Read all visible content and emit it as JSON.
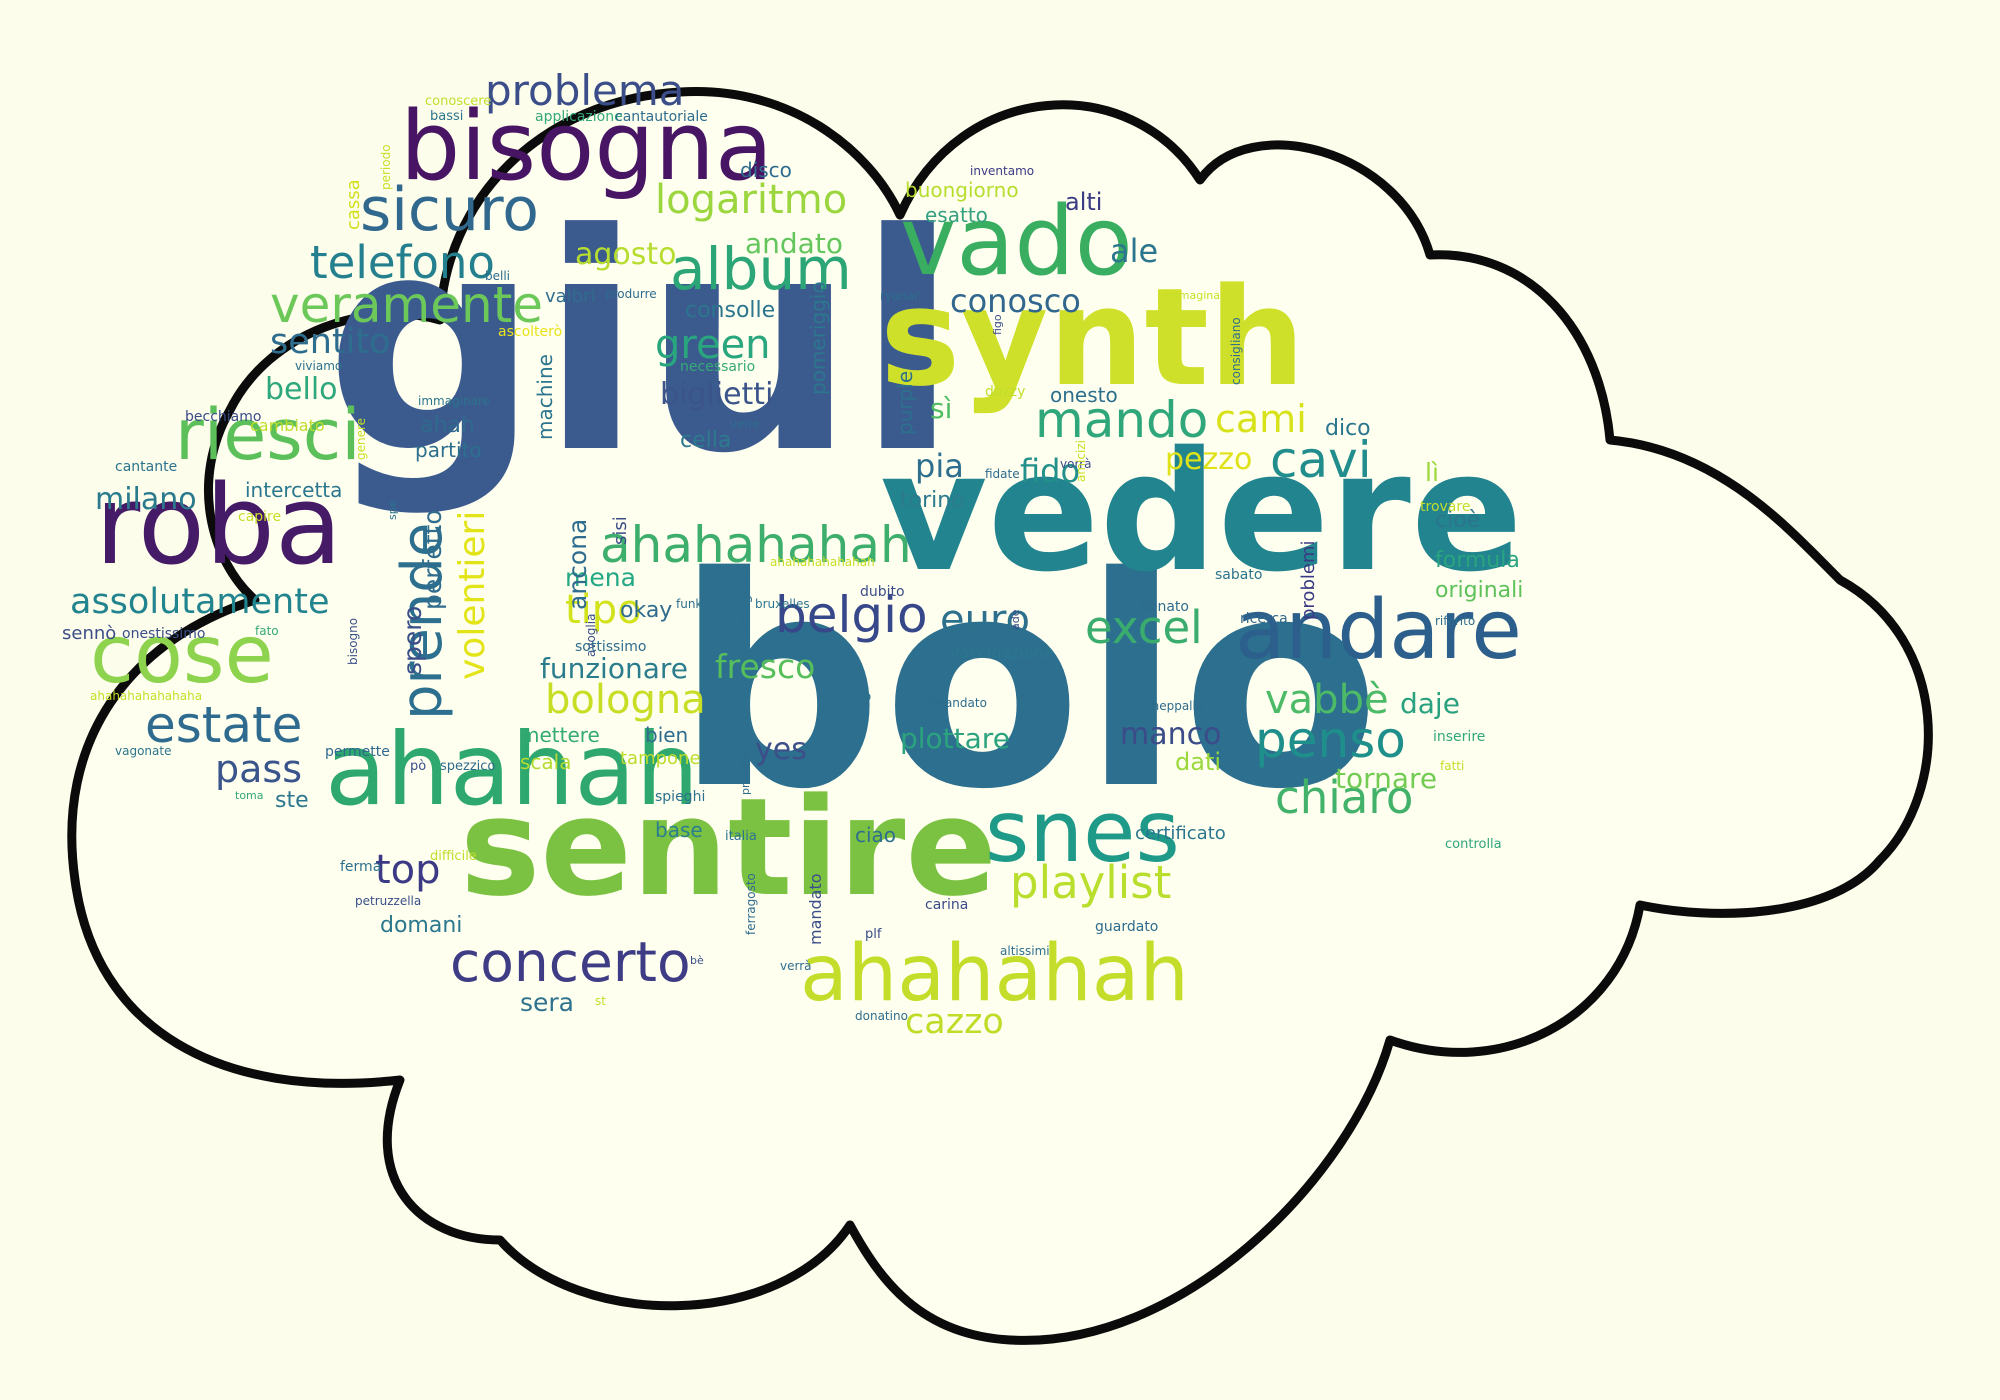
{
  "palette": {
    "background": "#fdfdeb",
    "cloud_fill": "#fffff0",
    "outline": "#0b0b0b",
    "viridis": [
      "#440154",
      "#482878",
      "#3e4a89",
      "#31688e",
      "#26828e",
      "#1f9e89",
      "#35b779",
      "#6ece58",
      "#b5de2b",
      "#fde725"
    ]
  },
  "words": [
    {
      "id": "giul",
      "text": "giul",
      "color": "#3b5b8f"
    },
    {
      "id": "bolo",
      "text": "bolo",
      "color": "#2c6f8e"
    },
    {
      "id": "vedere",
      "text": "vedere",
      "color": "#22848e"
    },
    {
      "id": "sentire",
      "text": "sentire",
      "color": "#7cc242"
    },
    {
      "id": "synth",
      "text": "synth",
      "color": "#cfe02a"
    },
    {
      "id": "ahahah",
      "text": "ahahah",
      "color": "#2ea86e"
    },
    {
      "id": "bisogna",
      "text": "bisogna",
      "color": "#471563"
    },
    {
      "id": "roba",
      "text": "roba",
      "color": "#451a66"
    },
    {
      "id": "vado",
      "text": "vado",
      "color": "#3aae60"
    },
    {
      "id": "andare",
      "text": "andare",
      "color": "#2c5f8c"
    },
    {
      "id": "ahahahah",
      "text": "ahahahah",
      "color": "#c4dd2a"
    },
    {
      "id": "snes",
      "text": "snes",
      "color": "#1f9a89"
    },
    {
      "id": "cose",
      "text": "cose",
      "color": "#8ed34e"
    },
    {
      "id": "riesci",
      "text": "riesci",
      "color": "#5cc05a"
    },
    {
      "id": "sicuro",
      "text": "sicuro",
      "color": "#31688e"
    },
    {
      "id": "concerto",
      "text": "concerto",
      "color": "#3e3c84"
    },
    {
      "id": "ahahahahah",
      "text": "ahahahahah",
      "color": "#3dae6c"
    },
    {
      "id": "album",
      "text": "album",
      "color": "#2ca677"
    },
    {
      "id": "veramente",
      "text": "veramente",
      "color": "#6dc85a"
    },
    {
      "id": "telefono",
      "text": "telefono",
      "color": "#24808e"
    },
    {
      "id": "problema",
      "text": "problema",
      "color": "#3b4e89"
    },
    {
      "id": "logaritmo",
      "text": "logaritmo",
      "color": "#9cd63e"
    },
    {
      "id": "mando",
      "text": "mando",
      "color": "#2fa77a"
    },
    {
      "id": "belgio",
      "text": "belgio",
      "color": "#36478a"
    },
    {
      "id": "penso",
      "text": "penso",
      "color": "#1f8f8c"
    },
    {
      "id": "estate",
      "text": "estate",
      "color": "#2f6b8e"
    },
    {
      "id": "prende",
      "text": "prende",
      "color": "#2d6f8e"
    },
    {
      "id": "excel",
      "text": "excel",
      "color": "#3aad6e"
    },
    {
      "id": "cavi",
      "text": "cavi",
      "color": "#218d8c"
    },
    {
      "id": "chiaro",
      "text": "chiaro",
      "color": "#42b26a"
    },
    {
      "id": "playlist",
      "text": "playlist",
      "color": "#b9de2e"
    },
    {
      "id": "assolutamente",
      "text": "assolutamente",
      "color": "#21848e"
    },
    {
      "id": "conosco",
      "text": "conosco",
      "color": "#31678e"
    },
    {
      "id": "bologna",
      "text": "bologna",
      "color": "#c8de26"
    },
    {
      "id": "tipo",
      "text": "tipo",
      "color": "#d2e21b"
    },
    {
      "id": "euro",
      "text": "euro",
      "color": "#2c708e"
    },
    {
      "id": "volentieri",
      "text": "volentieri",
      "color": "#e2e418"
    },
    {
      "id": "vabbe",
      "text": "vabbè",
      "color": "#4cba67"
    },
    {
      "id": "cami",
      "text": "cami",
      "color": "#d8e21a"
    },
    {
      "id": "pezzo",
      "text": "pezzo",
      "color": "#dfe218"
    },
    {
      "id": "sentito",
      "text": "sentito",
      "color": "#2f6d8e"
    },
    {
      "id": "green",
      "text": "green",
      "color": "#2aa67f"
    },
    {
      "id": "pass",
      "text": "pass",
      "color": "#3a558b"
    },
    {
      "id": "top",
      "text": "top",
      "color": "#3d3a85"
    },
    {
      "id": "fresco",
      "text": "fresco",
      "color": "#57be5c"
    },
    {
      "id": "cazzo",
      "text": "cazzo",
      "color": "#bfdc28"
    },
    {
      "id": "fido",
      "text": "fido",
      "color": "#23918b"
    },
    {
      "id": "milano",
      "text": "milano",
      "color": "#2a7a8e"
    },
    {
      "id": "bello",
      "text": "bello",
      "color": "#2fa77c"
    },
    {
      "id": "ale",
      "text": "ale",
      "color": "#2b768e"
    },
    {
      "id": "agosto",
      "text": "agosto",
      "color": "#b7dd30"
    },
    {
      "id": "andato",
      "text": "andato",
      "color": "#64c55d"
    },
    {
      "id": "biglietti",
      "text": "biglietti",
      "color": "#3b548a"
    },
    {
      "id": "pia",
      "text": "pia",
      "color": "#2e6e8e"
    },
    {
      "id": "funzionare",
      "text": "funzionare",
      "color": "#2b7d8e"
    },
    {
      "id": "mena",
      "text": "mena",
      "color": "#22a883"
    },
    {
      "id": "ancona",
      "text": "ancona",
      "color": "#2f6c8e"
    },
    {
      "id": "spero",
      "text": "spero",
      "color": "#3a4f89"
    },
    {
      "id": "perfetto",
      "text": "perfetto",
      "color": "#2f6c8e"
    },
    {
      "id": "si",
      "text": "sì",
      "color": "#4fbc62"
    },
    {
      "id": "dati",
      "text": "dati",
      "color": "#9ad83c"
    },
    {
      "id": "manco",
      "text": "manco",
      "color": "#3b4c89"
    },
    {
      "id": "plottare",
      "text": "plottare",
      "color": "#2ba37e"
    },
    {
      "id": "yes",
      "text": "yes",
      "color": "#3c4f89"
    },
    {
      "id": "tornare",
      "text": "tornare",
      "color": "#72cb52"
    },
    {
      "id": "daje",
      "text": "daje",
      "color": "#29a17f"
    },
    {
      "id": "sera",
      "text": "sera",
      "color": "#2e728e"
    },
    {
      "id": "domani",
      "text": "domani",
      "color": "#2b788e"
    },
    {
      "id": "ste",
      "text": "ste",
      "color": "#2b768e"
    },
    {
      "id": "onesto",
      "text": "onesto",
      "color": "#2e6f8e"
    },
    {
      "id": "buongiorno",
      "text": "buongiorno",
      "color": "#b6dd2d"
    },
    {
      "id": "alti",
      "text": "alti",
      "color": "#3a3b84"
    },
    {
      "id": "esatto",
      "text": "esatto",
      "color": "#35a07f"
    },
    {
      "id": "disco",
      "text": "disco",
      "color": "#2f6c8e"
    },
    {
      "id": "consolle",
      "text": "consolle",
      "color": "#2c758e"
    },
    {
      "id": "cella",
      "text": "cella",
      "color": "#2b7a8e"
    },
    {
      "id": "ahah",
      "text": "ahah",
      "color": "#306a8e"
    },
    {
      "id": "partito",
      "text": "partito",
      "color": "#2d6f8e"
    },
    {
      "id": "intercetta",
      "text": "intercetta",
      "color": "#2b778e"
    },
    {
      "id": "torino",
      "text": "torino",
      "color": "#2c7a8e"
    },
    {
      "id": "dico",
      "text": "dico",
      "color": "#2b768e"
    },
    {
      "id": "li",
      "text": "lì",
      "color": "#9cd73a"
    },
    {
      "id": "cioe",
      "text": "cioè",
      "color": "#2b758e"
    },
    {
      "id": "formula",
      "text": "formula",
      "color": "#29a47f"
    },
    {
      "id": "originali",
      "text": "originali",
      "color": "#5ec15a"
    },
    {
      "id": "okay",
      "text": "okay",
      "color": "#2f6b8e"
    },
    {
      "id": "scala",
      "text": "scala",
      "color": "#b4dc30"
    },
    {
      "id": "bien",
      "text": "bien",
      "color": "#2e6d8e"
    },
    {
      "id": "mettere",
      "text": "mettere",
      "color": "#34aa74"
    },
    {
      "id": "tampone",
      "text": "tampone",
      "color": "#bcdc2c"
    },
    {
      "id": "base",
      "text": "base",
      "color": "#2a7e8e"
    },
    {
      "id": "ciao",
      "text": "ciao",
      "color": "#2e6f8e"
    },
    {
      "id": "certificato",
      "text": "certificato",
      "color": "#2b758e"
    },
    {
      "id": "valbri",
      "text": "valbri",
      "color": "#306c8e"
    },
    {
      "id": "ascoltero",
      "text": "ascolterò",
      "color": "#e8e418"
    },
    {
      "id": "sisi",
      "text": "sisi",
      "color": "#3c4e89"
    },
    {
      "id": "machine",
      "text": "machine",
      "color": "#2c758e"
    },
    {
      "id": "pomeriggio",
      "text": "pomeriggio",
      "color": "#2c778e"
    },
    {
      "id": "purple",
      "text": "purple",
      "color": "#2c708e"
    },
    {
      "id": "cassa",
      "text": "cassa",
      "color": "#d0e01f"
    },
    {
      "id": "problemi",
      "text": "problemi",
      "color": "#3a3a84"
    },
    {
      "id": "applicazione",
      "text": "applicazione",
      "color": "#35a87a"
    },
    {
      "id": "cantautoriale",
      "text": "cantautoriale",
      "color": "#2e6c8e"
    },
    {
      "id": "conoscere",
      "text": "conoscere",
      "color": "#c4de2a"
    },
    {
      "id": "bassi",
      "text": "bassi",
      "color": "#2c758e"
    },
    {
      "id": "periodo",
      "text": "periodo",
      "color": "#c9de26"
    },
    {
      "id": "belli",
      "text": "belli",
      "color": "#2f6b8e"
    },
    {
      "id": "viviamo",
      "text": "viviamo",
      "color": "#2c708e"
    },
    {
      "id": "immaginare",
      "text": "immaginare",
      "color": "#2b748e"
    },
    {
      "id": "becchiamo",
      "text": "becchiamo",
      "color": "#3a4b88"
    },
    {
      "id": "cambiato",
      "text": "cambiato",
      "color": "#c0dc2a"
    },
    {
      "id": "cantante",
      "text": "cantante",
      "color": "#2c738e"
    },
    {
      "id": "genere",
      "text": "genere",
      "color": "#c8df23"
    },
    {
      "id": "capire",
      "text": "capire",
      "color": "#c7de26"
    },
    {
      "id": "senno",
      "text": "sennò",
      "color": "#3b4e89"
    },
    {
      "id": "onestissimo",
      "text": "onestissimo",
      "color": "#3a4d89"
    },
    {
      "id": "fato",
      "text": "fato",
      "color": "#35a978"
    },
    {
      "id": "bisogno",
      "text": "bisogno",
      "color": "#3b4f89"
    },
    {
      "id": "spe",
      "text": "spe",
      "color": "#2b768e"
    },
    {
      "id": "ahahahahahahaha",
      "text": "ahahahahahahaha",
      "color": "#c5de27"
    },
    {
      "id": "vagonate",
      "text": "vagonate",
      "color": "#2c748e"
    },
    {
      "id": "toma",
      "text": "toma",
      "color": "#32a777"
    },
    {
      "id": "permette",
      "text": "permette",
      "color": "#30688e"
    },
    {
      "id": "po",
      "text": "pò",
      "color": "#3a4e88"
    },
    {
      "id": "spezzico",
      "text": "spezzico",
      "color": "#2f6b8e"
    },
    {
      "id": "ferma",
      "text": "ferma",
      "color": "#2d6f8e"
    },
    {
      "id": "difficile",
      "text": "difficile",
      "color": "#c1dd2a"
    },
    {
      "id": "petruzzella",
      "text": "petruzzella",
      "color": "#3a4f89"
    },
    {
      "id": "produrre",
      "text": "produrre",
      "color": "#2f6b8e"
    },
    {
      "id": "necessario",
      "text": "necessario",
      "color": "#35aa76"
    },
    {
      "id": "vene",
      "text": "vene",
      "color": "#2f6c8e"
    },
    {
      "id": "ryanar",
      "text": "ryanar",
      "color": "#2c6f8e"
    },
    {
      "id": "figo",
      "text": "figo",
      "color": "#3a4f89"
    },
    {
      "id": "dozzy",
      "text": "dozzy",
      "color": "#c3dd2b"
    },
    {
      "id": "inventamo",
      "text": "inventamo",
      "color": "#3a3b84"
    },
    {
      "id": "immagina",
      "text": "immagina",
      "color": "#c6df26"
    },
    {
      "id": "consigliano",
      "text": "consigliano",
      "color": "#2d6e8e"
    },
    {
      "id": "fidate",
      "text": "fidate",
      "color": "#2f6b8e"
    },
    {
      "id": "vorra",
      "text": "vorrà",
      "color": "#3a4c89"
    },
    {
      "id": "amicizi",
      "text": "amicizi",
      "color": "#c9df25"
    },
    {
      "id": "funk",
      "text": "funk",
      "color": "#2d708e"
    },
    {
      "id": "bruxelles",
      "text": "bruxelles",
      "color": "#2c748e"
    },
    {
      "id": "ahahahahahahah",
      "text": "ahahahahahahah",
      "color": "#c6de27"
    },
    {
      "id": "dubito",
      "text": "dubito",
      "color": "#3a4e89"
    },
    {
      "id": "sabato",
      "text": "sabato",
      "color": "#2c738e"
    },
    {
      "id": "trovare",
      "text": "trovare",
      "color": "#c2dd2b"
    },
    {
      "id": "riferito",
      "text": "riferito",
      "color": "#2e6d8e"
    },
    {
      "id": "ricerca",
      "text": "ricerca",
      "color": "#30688e"
    },
    {
      "id": "donato",
      "text": "donato",
      "color": "#2f6b8e"
    },
    {
      "id": "ade",
      "text": "ade",
      "color": "#3a4d89"
    },
    {
      "id": "vaccinazione",
      "text": "vaccinazione",
      "color": "#2b778e"
    },
    {
      "id": "consigliato",
      "text": "consigliato",
      "color": "#2e6d8e"
    },
    {
      "id": "avoglia",
      "text": "avoglia",
      "color": "#3a4f89"
    },
    {
      "id": "sottissimo",
      "text": "sottissimo",
      "color": "#2e6c8e"
    },
    {
      "id": "trovo",
      "text": "trovo",
      "color": "#2d708e"
    },
    {
      "id": "rimandato",
      "text": "rimandato",
      "color": "#2e6c8e"
    },
    {
      "id": "cheppalle",
      "text": "cheppalle",
      "color": "#2f6b8e"
    },
    {
      "id": "inserire",
      "text": "inserire",
      "color": "#30a87a"
    },
    {
      "id": "fatti",
      "text": "fatti",
      "color": "#c5dd29"
    },
    {
      "id": "controlla",
      "text": "controlla",
      "color": "#2ea67c"
    },
    {
      "id": "provato",
      "text": "provato",
      "color": "#2f6b8e"
    },
    {
      "id": "trovi",
      "text": "trovi",
      "color": "#2d708e"
    },
    {
      "id": "spieghi",
      "text": "spieghi",
      "color": "#2d708e"
    },
    {
      "id": "italia",
      "text": "italia",
      "color": "#2c738e"
    },
    {
      "id": "carina",
      "text": "carina",
      "color": "#3a4b89"
    },
    {
      "id": "ferragosto",
      "text": "ferragosto",
      "color": "#2f6b8e"
    },
    {
      "id": "mandato",
      "text": "mandato",
      "color": "#3a4e89"
    },
    {
      "id": "plf",
      "text": "plf",
      "color": "#3a4b89"
    },
    {
      "id": "altissimi",
      "text": "altissimi",
      "color": "#2d708e"
    },
    {
      "id": "guardato",
      "text": "guardato",
      "color": "#2e6c8e"
    },
    {
      "id": "be",
      "text": "bè",
      "color": "#3a4d89"
    },
    {
      "id": "verra",
      "text": "verrà",
      "color": "#2e6c8e"
    },
    {
      "id": "donatino",
      "text": "donatino",
      "color": "#2e6d8e"
    },
    {
      "id": "st",
      "text": "st",
      "color": "#c4de28"
    }
  ]
}
